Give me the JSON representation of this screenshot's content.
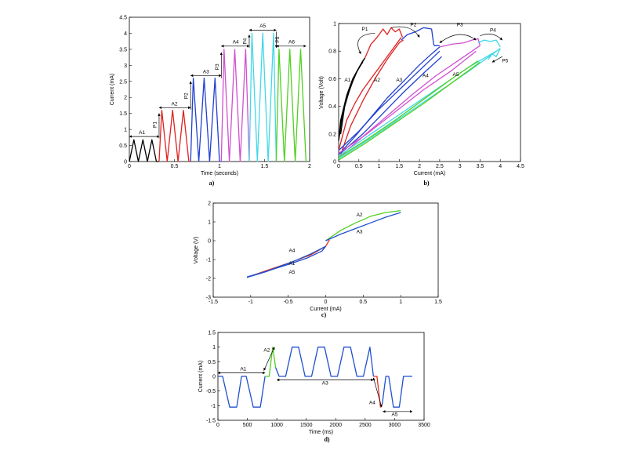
{
  "colors": {
    "a1": "#000000",
    "a2": "#e02020",
    "a3": "#2040d0",
    "a4": "#d050d0",
    "a5": "#40d8e8",
    "a6": "#50d020",
    "blue": "#2050d0",
    "red": "#e03020",
    "green": "#50d020"
  },
  "chart_data": [
    {
      "panel": "a)",
      "type": "line",
      "xlabel": "Time (seconds)",
      "ylabel": "Current (mA)",
      "xlim": [
        0,
        2
      ],
      "ylim": [
        0,
        4.5
      ],
      "xticks": [
        "0",
        "0.5",
        "1",
        "1.5",
        "2"
      ],
      "yticks": [
        "0",
        "0.5",
        "1",
        "1.5",
        "2",
        "2.5",
        "3",
        "3.5",
        "4",
        "4.5"
      ],
      "series": [
        {
          "group": "A1",
          "color": "#000000",
          "x": [
            0,
            0.05,
            0.1,
            0.15,
            0.2,
            0.25,
            0.3,
            0.33
          ],
          "y": [
            0,
            0.68,
            0,
            0.68,
            0,
            0.68,
            0,
            0
          ]
        },
        {
          "group": "A2",
          "color": "#e02020",
          "x": [
            0.33,
            0.36,
            0.42,
            0.48,
            0.54,
            0.6,
            0.66,
            0.68
          ],
          "y": [
            0,
            1.6,
            0,
            1.6,
            0,
            1.6,
            0,
            0
          ]
        },
        {
          "group": "A3",
          "color": "#2040d0",
          "x": [
            0.68,
            0.71,
            0.77,
            0.83,
            0.89,
            0.95,
            1.0,
            1.02
          ],
          "y": [
            0,
            2.6,
            0,
            2.6,
            0,
            2.6,
            0,
            0
          ]
        },
        {
          "group": "A4",
          "color": "#d050d0",
          "x": [
            1.02,
            1.05,
            1.11,
            1.17,
            1.23,
            1.29,
            1.33
          ],
          "y": [
            0,
            3.5,
            0,
            3.5,
            0,
            3.5,
            0
          ]
        },
        {
          "group": "A5",
          "color": "#40d8e8",
          "x": [
            1.33,
            1.36,
            1.42,
            1.48,
            1.54,
            1.6,
            1.63
          ],
          "y": [
            0,
            4.0,
            0,
            4.0,
            0,
            4.0,
            0
          ]
        },
        {
          "group": "A6",
          "color": "#50d020",
          "x": [
            1.63,
            1.66,
            1.72,
            1.78,
            1.84,
            1.9,
            1.96
          ],
          "y": [
            0,
            3.5,
            0,
            3.5,
            0,
            3.5,
            0
          ]
        }
      ],
      "annotations": [
        "A1",
        "P1",
        "A2",
        "P2",
        "A3",
        "P3",
        "A4",
        "P4",
        "A5",
        "P5",
        "A6"
      ]
    },
    {
      "panel": "b)",
      "type": "line",
      "xlabel": "Current (mA)",
      "ylabel": "Voltage (Volt)",
      "xlim": [
        0,
        4.5
      ],
      "ylim": [
        0,
        1
      ],
      "xticks": [
        "0",
        "0.5",
        "1",
        "1.5",
        "2",
        "2.5",
        "3",
        "3.5",
        "4",
        "4.5"
      ],
      "yticks": [
        "0",
        "0.2",
        "0.4",
        "0.6",
        "0.8",
        "1"
      ],
      "series": [
        {
          "group": "A1",
          "color": "#000000",
          "x": [
            0,
            0.1,
            0.2,
            0.3,
            0.4,
            0.5,
            0.6,
            0.65,
            0.5,
            0.35,
            0.2,
            0.05,
            0
          ],
          "y": [
            0.15,
            0.35,
            0.45,
            0.55,
            0.62,
            0.68,
            0.73,
            0.75,
            0.68,
            0.6,
            0.48,
            0.3,
            0.15
          ]
        },
        {
          "group": "A1b",
          "color": "#000000",
          "x": [
            0.05,
            0.15,
            0.25,
            0.35,
            0.45,
            0.55,
            0.6
          ],
          "y": [
            0.2,
            0.4,
            0.5,
            0.58,
            0.65,
            0.7,
            0.72
          ]
        },
        {
          "group": "P1",
          "color": "#e02020",
          "x": [
            0.65,
            0.8,
            0.95,
            1.1,
            1.2,
            1.3,
            1.4,
            1.5,
            1.58
          ],
          "y": [
            0.75,
            0.85,
            0.9,
            0.96,
            0.92,
            0.97,
            0.94,
            0.96,
            0.9
          ]
        },
        {
          "group": "A2",
          "color": "#e02020",
          "x": [
            0,
            0.2,
            0.4,
            0.6,
            0.8,
            1.0,
            1.2,
            1.4,
            1.55
          ],
          "y": [
            0.08,
            0.3,
            0.42,
            0.52,
            0.6,
            0.68,
            0.76,
            0.84,
            0.9
          ]
        },
        {
          "group": "A2b",
          "color": "#e02020",
          "x": [
            0.05,
            0.3,
            0.6,
            0.9,
            1.2,
            1.5,
            1.6
          ],
          "y": [
            0.05,
            0.26,
            0.44,
            0.6,
            0.74,
            0.86,
            0.88
          ]
        },
        {
          "group": "P2",
          "color": "#2040d0",
          "x": [
            1.55,
            1.7,
            1.9,
            2.1,
            2.3,
            2.35,
            2.37,
            2.5
          ],
          "y": [
            0.88,
            0.92,
            0.94,
            0.97,
            0.96,
            0.85,
            0.84,
            0.84
          ]
        },
        {
          "group": "A3",
          "color": "#2040d0",
          "x": [
            0,
            0.4,
            0.8,
            1.2,
            1.6,
            2.0,
            2.3,
            2.5
          ],
          "y": [
            0.05,
            0.18,
            0.32,
            0.46,
            0.58,
            0.7,
            0.78,
            0.83
          ]
        },
        {
          "group": "A3b",
          "color": "#2040d0",
          "x": [
            0,
            0.5,
            1.0,
            1.5,
            2.0,
            2.5
          ],
          "y": [
            0.08,
            0.22,
            0.38,
            0.52,
            0.66,
            0.8
          ]
        },
        {
          "group": "A3c",
          "color": "#2040d0",
          "x": [
            0.05,
            0.6,
            1.1,
            1.6,
            2.1,
            2.55
          ],
          "y": [
            0.06,
            0.2,
            0.35,
            0.5,
            0.64,
            0.76
          ]
        },
        {
          "group": "P3",
          "color": "#d050d0",
          "x": [
            2.5,
            2.8,
            3.1,
            3.3,
            3.45,
            3.5
          ],
          "y": [
            0.83,
            0.85,
            0.86,
            0.88,
            0.89,
            0.84
          ]
        },
        {
          "group": "A4",
          "color": "#d050d0",
          "x": [
            0,
            0.6,
            1.2,
            1.8,
            2.4,
            3.0,
            3.5
          ],
          "y": [
            0.03,
            0.18,
            0.33,
            0.48,
            0.62,
            0.74,
            0.84
          ]
        },
        {
          "group": "A4b",
          "color": "#d050d0",
          "x": [
            0,
            0.7,
            1.4,
            2.1,
            2.8,
            3.4
          ],
          "y": [
            0.06,
            0.2,
            0.36,
            0.52,
            0.66,
            0.8
          ]
        },
        {
          "group": "P4",
          "color": "#40d8e8",
          "x": [
            3.45,
            3.6,
            3.75,
            3.9,
            4.0
          ],
          "y": [
            0.86,
            0.88,
            0.87,
            0.88,
            0.83
          ]
        },
        {
          "group": "A5",
          "color": "#40d8e8",
          "x": [
            0,
            0.8,
            1.6,
            2.4,
            3.2,
            4.0
          ],
          "y": [
            0.02,
            0.17,
            0.33,
            0.49,
            0.65,
            0.82
          ]
        },
        {
          "group": "A5b",
          "color": "#40d8e8",
          "x": [
            0,
            0.8,
            1.6,
            2.4,
            3.2,
            3.9
          ],
          "y": [
            0.04,
            0.2,
            0.36,
            0.52,
            0.68,
            0.8
          ]
        },
        {
          "group": "P5",
          "color": "#40d8e8",
          "x": [
            4.0,
            3.9,
            3.8,
            3.7
          ],
          "y": [
            0.82,
            0.76,
            0.78,
            0.74
          ]
        },
        {
          "group": "A6",
          "color": "#50d020",
          "x": [
            0,
            0.7,
            1.4,
            2.1,
            2.8,
            3.5
          ],
          "y": [
            0.01,
            0.14,
            0.28,
            0.42,
            0.57,
            0.72
          ]
        },
        {
          "group": "A6b",
          "color": "#50d020",
          "x": [
            0,
            0.7,
            1.4,
            2.1,
            2.8,
            3.45
          ],
          "y": [
            0.03,
            0.16,
            0.3,
            0.45,
            0.6,
            0.73
          ]
        }
      ],
      "annotations": [
        "P1",
        "P2",
        "P3",
        "P4",
        "P5",
        "A1",
        "A2",
        "A3",
        "A4",
        "A5"
      ]
    },
    {
      "panel": "c)",
      "type": "line",
      "xlabel": "Current (mA)",
      "ylabel": "Voltage (V)",
      "xlim": [
        -1.5,
        1.5
      ],
      "ylim": [
        -3,
        2
      ],
      "xticks": [
        "-1.5",
        "-1",
        "-0.5",
        "0",
        "0.5",
        "1",
        "1.5"
      ],
      "yticks": [
        "-3",
        "-2",
        "-1",
        "0",
        "1",
        "2"
      ],
      "series": [
        {
          "group": "A4",
          "color": "#e03020",
          "x": [
            -1.05,
            -0.8,
            -0.5,
            -0.2,
            0,
            0.05
          ],
          "y": [
            -1.95,
            -1.6,
            -1.2,
            -0.75,
            -0.3,
            0.05
          ]
        },
        {
          "group": "A2",
          "color": "#50d020",
          "x": [
            0,
            0.2,
            0.4,
            0.6,
            0.8,
            1.0
          ],
          "y": [
            0,
            0.55,
            0.95,
            1.3,
            1.5,
            1.6
          ]
        },
        {
          "group": "A3",
          "color": "#2050d0",
          "x": [
            0,
            0.2,
            0.4,
            0.6,
            0.8,
            1.0
          ],
          "y": [
            0,
            0.35,
            0.65,
            0.95,
            1.25,
            1.5
          ]
        },
        {
          "group": "A1",
          "color": "#2050d0",
          "x": [
            0,
            -0.2,
            -0.4,
            -0.6,
            -0.8,
            -1.05
          ],
          "y": [
            -0.3,
            -0.7,
            -1.05,
            -1.35,
            -1.65,
            -1.95
          ]
        },
        {
          "group": "A5",
          "color": "#2050d0",
          "x": [
            -1.05,
            -0.85,
            -0.65,
            -0.45,
            -0.25,
            -0.05,
            0
          ],
          "y": [
            -1.92,
            -1.7,
            -1.45,
            -1.2,
            -0.92,
            -0.55,
            -0.3
          ]
        }
      ],
      "annotations": [
        "A2",
        "A3",
        "A4",
        "A1",
        "A5"
      ]
    },
    {
      "panel": "d)",
      "type": "line",
      "xlabel": "Time (ms)",
      "ylabel": "Current (mA)",
      "xlim": [
        0,
        3500
      ],
      "ylim": [
        -1.5,
        1.5
      ],
      "xticks": [
        "0",
        "500",
        "1000",
        "1500",
        "2000",
        "2500",
        "3000",
        "3500"
      ],
      "yticks": [
        "-1.5",
        "-1",
        "-0.5",
        "0",
        "0.5",
        "1",
        "1.5"
      ],
      "series": [
        {
          "group": "A1",
          "color": "#2050d0",
          "x": [
            0,
            80,
            200,
            320,
            400,
            480,
            600,
            720,
            800
          ],
          "y": [
            0,
            0,
            -1.05,
            -1.05,
            0,
            0,
            -1.05,
            -1.05,
            0
          ]
        },
        {
          "group": "A2",
          "color": "#50d020",
          "x": [
            800,
            870,
            930,
            980
          ],
          "y": [
            0,
            0,
            1.0,
            0.3
          ]
        },
        {
          "group": "A3",
          "color": "#2050d0",
          "x": [
            980,
            1040,
            1150,
            1260,
            1370,
            1480,
            1590,
            1700,
            1810,
            1920,
            2030,
            2140,
            2250,
            2360,
            2470,
            2580,
            2640
          ],
          "y": [
            0.3,
            0,
            0,
            1.0,
            1.0,
            0,
            0,
            1.0,
            1.0,
            0,
            0,
            1.0,
            1.0,
            0,
            0,
            1.0,
            0
          ]
        },
        {
          "group": "A4",
          "color": "#e03020",
          "x": [
            2640,
            2700,
            2760,
            2790
          ],
          "y": [
            0,
            0,
            -1.05,
            -0.95
          ]
        },
        {
          "group": "A5",
          "color": "#2050d0",
          "x": [
            2790,
            2850,
            2900,
            2980,
            3080,
            3150,
            3250,
            3300
          ],
          "y": [
            -0.95,
            0,
            0,
            -1.05,
            -1.05,
            0,
            0,
            0
          ]
        }
      ],
      "annotations": [
        "A1",
        "A2",
        "A3",
        "A4",
        "A5"
      ]
    }
  ]
}
